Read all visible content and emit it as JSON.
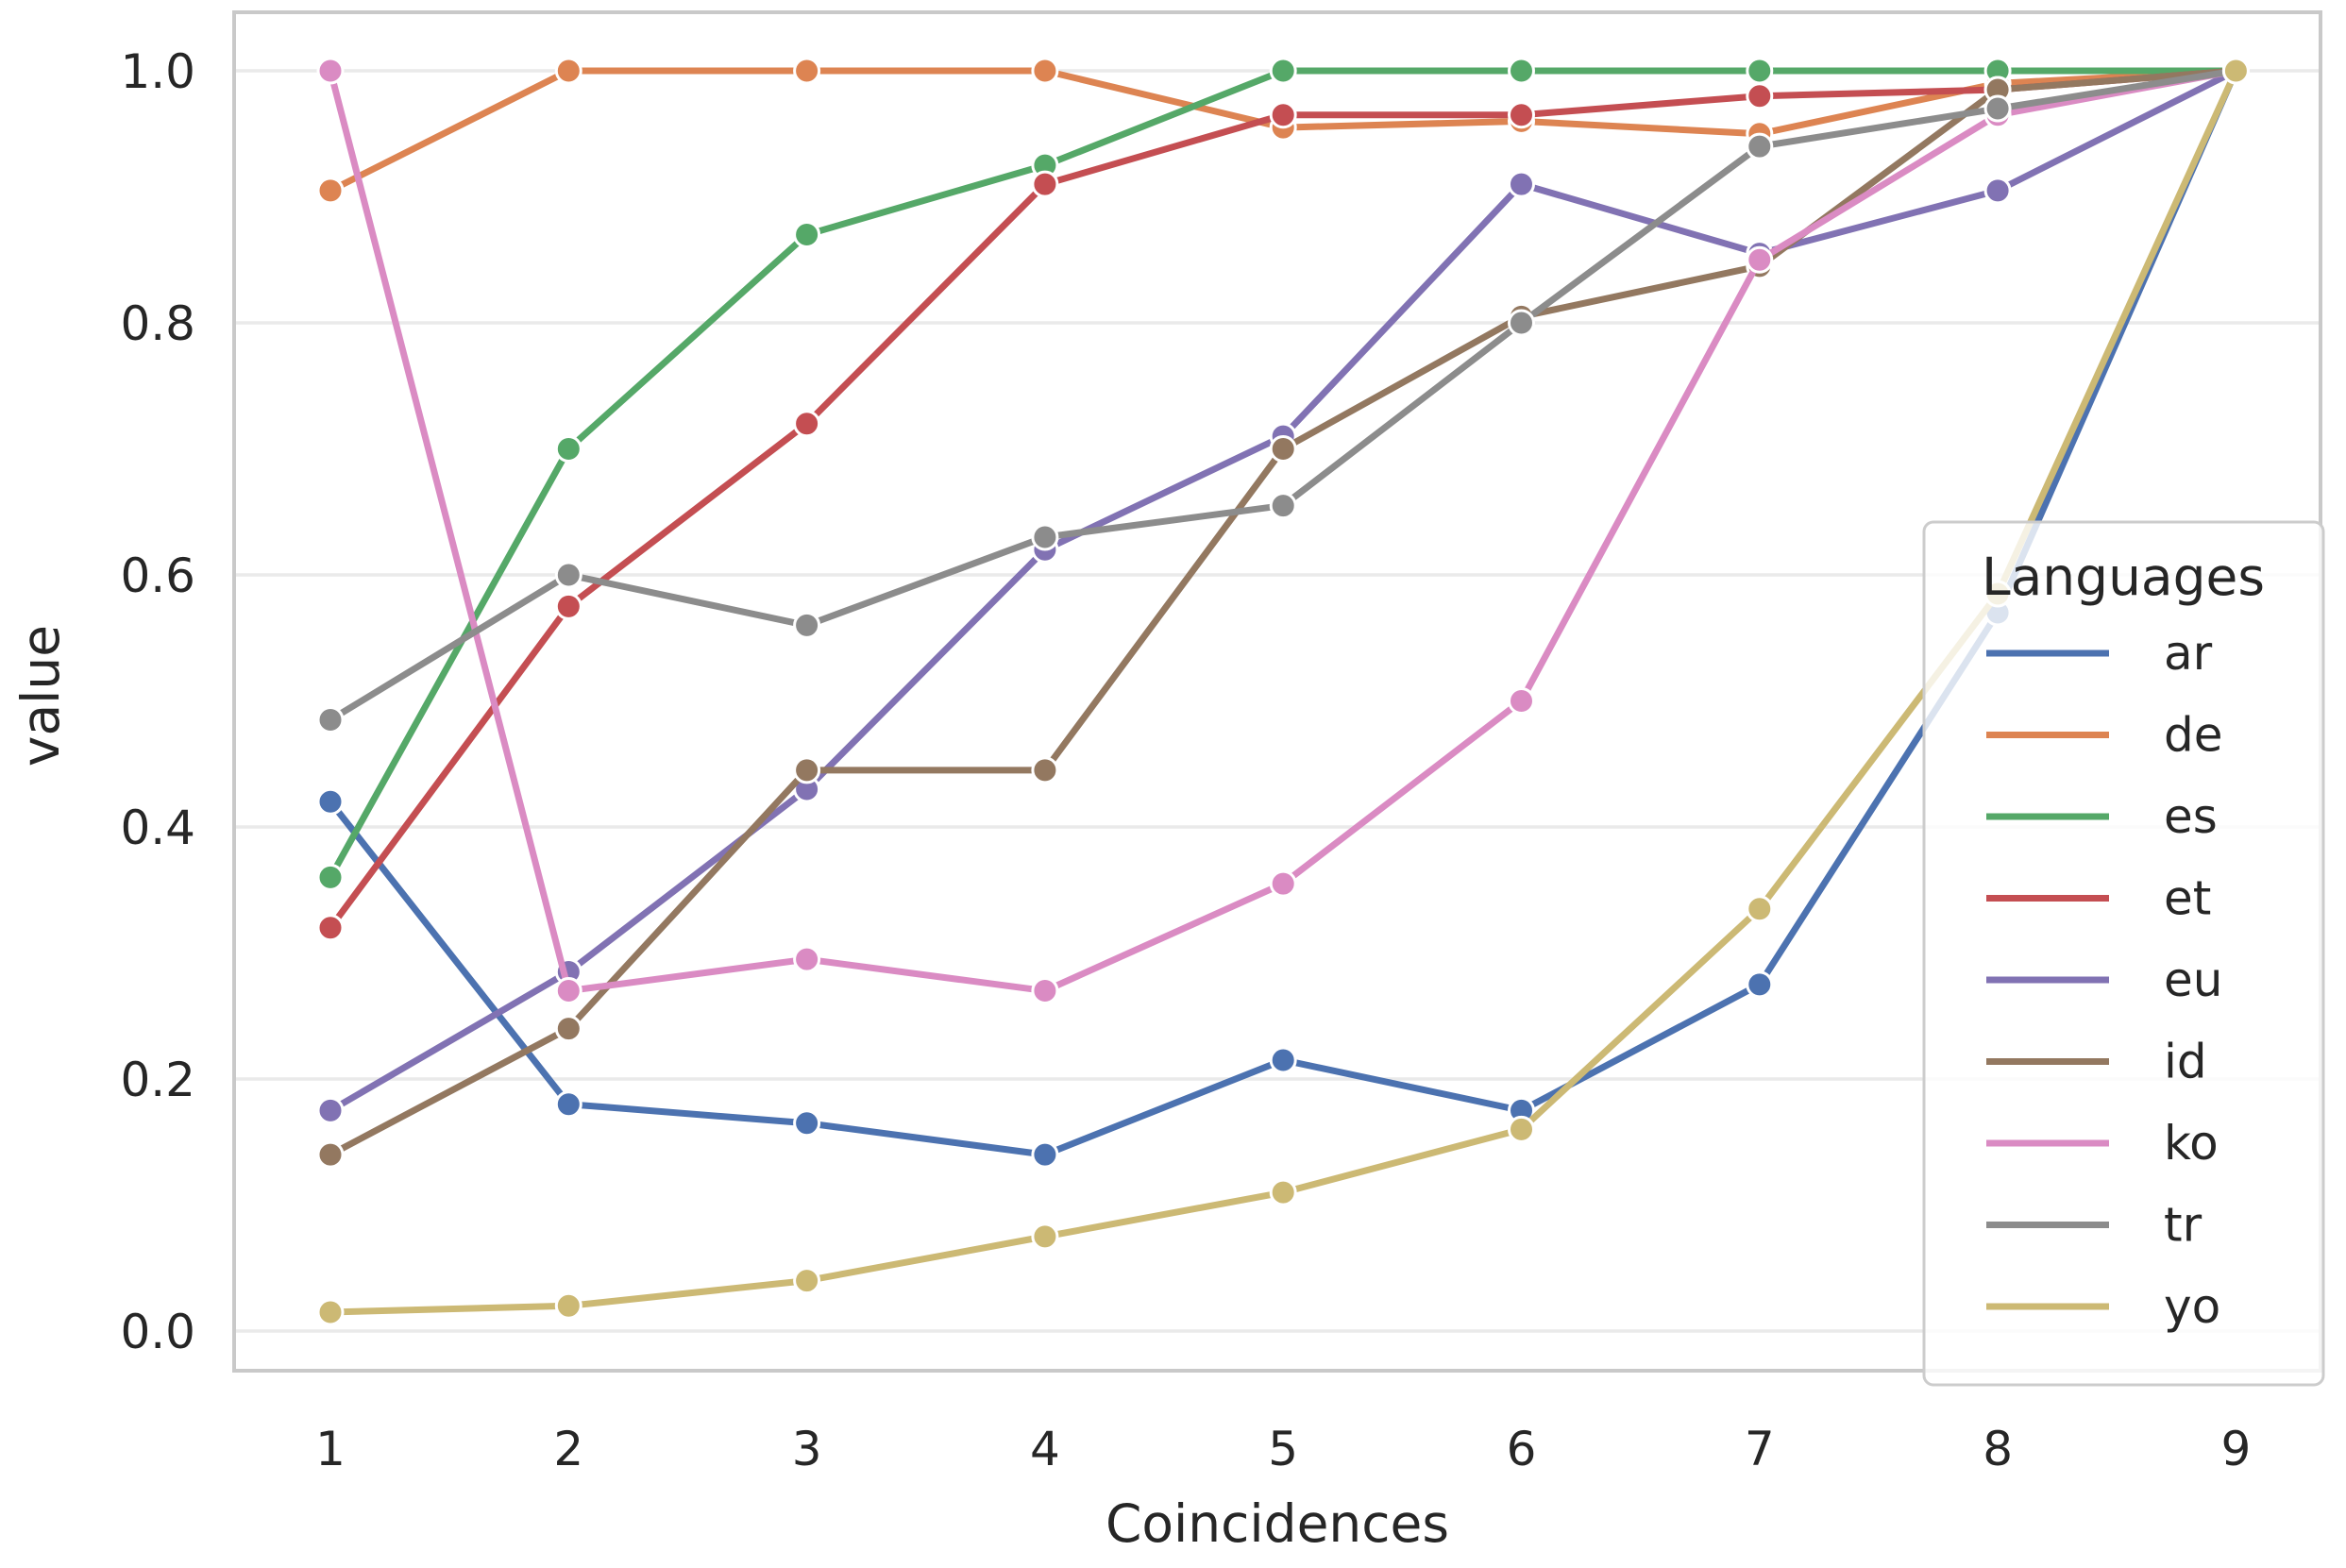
{
  "chart_data": {
    "type": "line",
    "title": "",
    "xlabel": "Coincidences",
    "ylabel": "value",
    "x": [
      1,
      2,
      3,
      4,
      5,
      6,
      7,
      8,
      9
    ],
    "xtick_labels": [
      "1",
      "2",
      "3",
      "4",
      "5",
      "6",
      "7",
      "8",
      "9"
    ],
    "yticks": [
      0.0,
      0.2,
      0.4,
      0.6,
      0.8,
      1.0
    ],
    "ytick_labels": [
      "0.0",
      "0.2",
      "0.4",
      "0.6",
      "0.8",
      "1.0"
    ],
    "xlim": [
      0.6,
      9.36
    ],
    "ylim": [
      -0.031,
      1.046
    ],
    "grid": "horizontal-only",
    "legend": {
      "title": "Languages",
      "position": "lower-right-inside"
    },
    "series": [
      {
        "name": "ar",
        "color": "#4C72B0",
        "values": [
          0.42,
          0.18,
          0.165,
          0.14,
          0.215,
          0.175,
          0.275,
          0.57,
          1.0
        ]
      },
      {
        "name": "de",
        "color": "#DD8452",
        "values": [
          0.905,
          1.0,
          1.0,
          1.0,
          0.955,
          0.96,
          0.95,
          0.99,
          1.0
        ]
      },
      {
        "name": "es",
        "color": "#55A868",
        "values": [
          0.36,
          0.7,
          0.87,
          0.925,
          1.0,
          1.0,
          1.0,
          1.0,
          1.0
        ]
      },
      {
        "name": "et",
        "color": "#C44E52",
        "values": [
          0.32,
          0.575,
          0.72,
          0.91,
          0.965,
          0.965,
          0.98,
          0.985,
          1.0
        ]
      },
      {
        "name": "eu",
        "color": "#8172B3",
        "values": [
          0.175,
          0.285,
          0.43,
          0.62,
          0.71,
          0.91,
          0.855,
          0.905,
          1.0
        ]
      },
      {
        "name": "id",
        "color": "#937860",
        "values": [
          0.14,
          0.24,
          0.445,
          0.445,
          0.7,
          0.805,
          0.845,
          0.985,
          1.0
        ]
      },
      {
        "name": "ko",
        "color": "#DA8BC3",
        "values": [
          1.0,
          0.27,
          0.295,
          0.27,
          0.355,
          0.5,
          0.85,
          0.965,
          1.0
        ]
      },
      {
        "name": "tr",
        "color": "#8C8C8C",
        "values": [
          0.485,
          0.6,
          0.56,
          0.63,
          0.655,
          0.8,
          0.94,
          0.97,
          1.0
        ]
      },
      {
        "name": "yo",
        "color": "#CCB974",
        "values": [
          0.015,
          0.02,
          0.04,
          0.075,
          0.11,
          0.16,
          0.335,
          0.585,
          1.0
        ]
      }
    ]
  },
  "style": {
    "background": "#FFFFFF",
    "grid_color": "#EAEAEA",
    "spine_color": "#C9C9C9",
    "text_color": "#262626",
    "legend_border_color": "#CCCCCC",
    "legend_background": "rgba(255,255,255,0.8)"
  }
}
